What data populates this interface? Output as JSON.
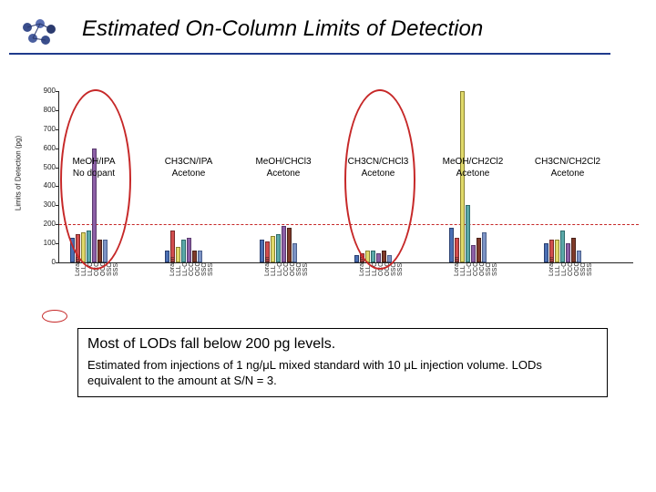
{
  "title": "Estimated On-Column Limits of Detection",
  "yaxis_label": "Limits of Detection (pg)",
  "ymin": 0,
  "ymax": 900,
  "ytick_step": 100,
  "dashed_ref": 200,
  "group_labels": [
    {
      "line1": "MeOH/IPA",
      "line2": "No dopant"
    },
    {
      "line1": "CH3CN/IPA",
      "line2": "Acetone"
    },
    {
      "line1": "MeOH/CHCl3",
      "line2": "Acetone"
    },
    {
      "line1": "CH3CN/CHCl3",
      "line2": "Acetone"
    },
    {
      "line1": "MeOH/CH2Cl2",
      "line2": "Acetone"
    },
    {
      "line1": "CH3CN/CH2Cl2",
      "line2": "Acetone"
    }
  ],
  "compounds": [
    "Loratin",
    "LLL",
    "LL-O",
    "CCO",
    "OCO",
    "SSO",
    "SSS"
  ],
  "series": [
    [
      130,
      150,
      160,
      170,
      600,
      120,
      120
    ],
    [
      60,
      170,
      80,
      120,
      130,
      60,
      60
    ],
    [
      120,
      110,
      140,
      150,
      190,
      180,
      100
    ],
    [
      40,
      50,
      60,
      60,
      50,
      60,
      40
    ],
    [
      180,
      130,
      900,
      300,
      90,
      130,
      160
    ],
    [
      100,
      120,
      120,
      170,
      100,
      130,
      60
    ]
  ],
  "bar_palette": {
    "fills": [
      "#4a6fb3",
      "#d14d4d",
      "#e0d96a",
      "#5aa8a8",
      "#8c5fa6",
      "#7f3a2a",
      "#7c93c4"
    ],
    "borders": [
      "#2a3f70",
      "#7a2b2b",
      "#8a8230",
      "#2f6b6b",
      "#5a3a6e",
      "#4a2118",
      "#4a5f8c"
    ]
  },
  "circled_groups": [
    0,
    3
  ],
  "group_width": 54,
  "group_gap": 50,
  "group_left_start": 12,
  "caption_main": "Most of LODs fall below 200 pg levels.",
  "caption_sub": "Estimated from injections of 1 ng/μL mixed standard with 10 μL injection volume. LODs equivalent to the amount at S/N = 3."
}
